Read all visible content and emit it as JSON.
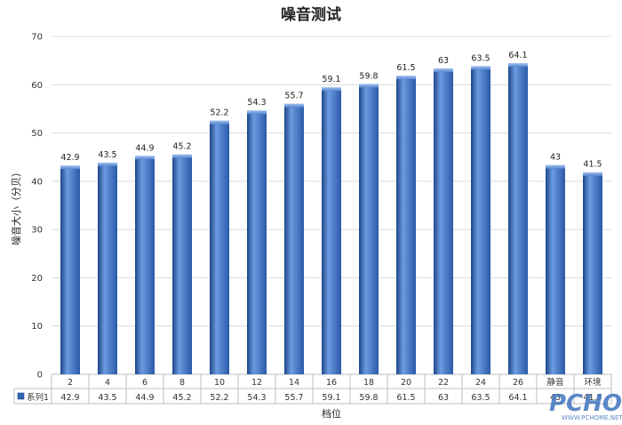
{
  "chart_data": {
    "type": "bar",
    "title": "噪音测试",
    "xlabel": "档位",
    "ylabel": "噪音大小（分贝）",
    "ylim": [
      0,
      70
    ],
    "yticks": [
      0,
      10,
      20,
      30,
      40,
      50,
      60,
      70
    ],
    "grid": true,
    "categories": [
      "2",
      "4",
      "6",
      "8",
      "10",
      "12",
      "14",
      "16",
      "18",
      "20",
      "22",
      "24",
      "26",
      "静音",
      "环境"
    ],
    "series": [
      {
        "name": "系列1",
        "values": [
          42.9,
          43.5,
          44.9,
          45.2,
          52.2,
          54.3,
          55.7,
          59.1,
          59.8,
          61.5,
          63,
          63.5,
          64.1,
          43,
          41.5
        ]
      }
    ],
    "data_table": true,
    "colors": {
      "bar": "#2f64b6",
      "bar_light": "#6c9be0",
      "bar_dark": "#1d4789",
      "grid": "#d9d9d9"
    }
  },
  "watermark": {
    "main": "PCHOME",
    "sub": "WWW.PCHOME.NET"
  }
}
